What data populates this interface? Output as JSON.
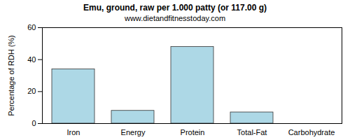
{
  "chart_data": {
    "type": "bar",
    "title": "Emu, ground, raw per 1.000 patty (or 117.00 g)",
    "subtitle": "www.dietandfitnesstoday.com",
    "y_label": "Percentage of RDH (%)",
    "categories": [
      "Iron",
      "Energy",
      "Protein",
      "Total-Fat",
      "Carbohydrate"
    ],
    "values": [
      34,
      8,
      48,
      7,
      0
    ],
    "color": "#add8e6",
    "ylim": [
      0,
      60
    ],
    "yticks": [
      0,
      20,
      40,
      60
    ],
    "grid": false
  }
}
